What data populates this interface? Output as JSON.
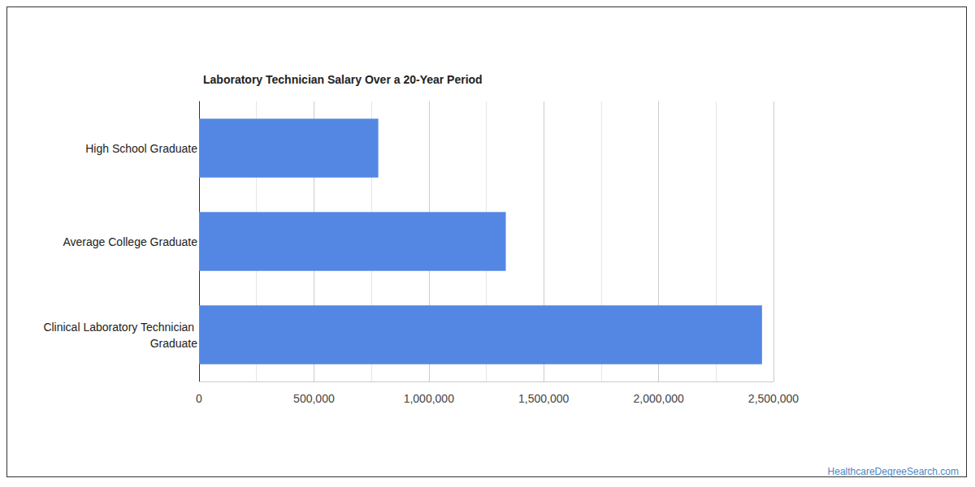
{
  "chart_data": {
    "type": "bar",
    "title": "Laboratory Technician Salary Over a 20-Year Period",
    "orientation": "horizontal",
    "categories": [
      "High School Graduate",
      "Average College Graduate",
      "Clinical Laboratory Technician Graduate"
    ],
    "values": [
      780000,
      1335000,
      2450000
    ],
    "color": "#5487e3",
    "xlim": [
      0,
      2500000
    ],
    "xticks": [
      0,
      {
        "value": 500000,
        "label": "500,000"
      },
      {
        "value": 1000000,
        "label": "1,000,000"
      },
      {
        "value": 1500000,
        "label": "1,500,000"
      },
      {
        "value": 2000000,
        "label": "2,000,000"
      },
      {
        "value": 2500000,
        "label": "2,500,000"
      }
    ],
    "grid": true,
    "source": "HealthcareDegreeSearch.com"
  }
}
